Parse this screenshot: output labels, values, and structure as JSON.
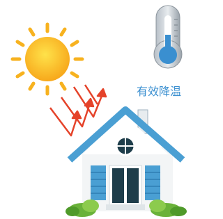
{
  "caption": "有效降温"
}
